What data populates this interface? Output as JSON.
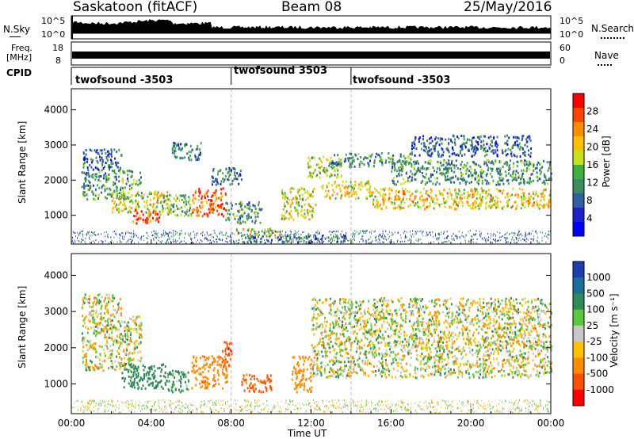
{
  "header": {
    "station": "Saskatoon (fitACF)",
    "beam": "Beam 08",
    "date": "25/May/2016"
  },
  "top_panels": {
    "nsky_label": "N.Sky",
    "nsky_scale": [
      "10^5",
      "10^0"
    ],
    "nsearch_label": "N.Search",
    "nsearch_scale": [
      "10^5",
      "10^0"
    ],
    "freq_label": "Freq.",
    "freq_unit": "[MHz]",
    "freq_scale": [
      "18",
      "8"
    ],
    "nave_label": "Nave",
    "nave_scale": [
      "60",
      "0"
    ],
    "cpid_label": "CPID",
    "cpid_segments": [
      {
        "label": "twofsound -3503",
        "start_hour": 0
      },
      {
        "label": "twofsound 3503",
        "start_hour": 8
      },
      {
        "label": "twofsound -3503",
        "start_hour": 14
      }
    ]
  },
  "power_colorbar": {
    "title": "Power [dB]",
    "ticks": [
      "28",
      "24",
      "20",
      "16",
      "12",
      "8",
      "4"
    ],
    "colors": [
      "#ff0000",
      "#ff4500",
      "#ff8c00",
      "#ffc000",
      "#c8e020",
      "#40b040",
      "#3c8c60",
      "#3060a0",
      "#2020c8",
      "#0000ff"
    ]
  },
  "velocity_colorbar": {
    "title": "Velocity [m s⁻¹]",
    "ticks": [
      "1000",
      "500",
      "100",
      "25",
      "-25",
      "-100",
      "-500",
      "-1000"
    ],
    "colors": [
      "#1e3cb4",
      "#1a6e9a",
      "#2e8b57",
      "#5ec840",
      "#c8c8c8",
      "#ffc000",
      "#ff8c00",
      "#ff5000",
      "#ff0000"
    ]
  },
  "chart_data": [
    {
      "type": "heatmap",
      "name": "power",
      "xlabel": "Time UT",
      "ylabel": "Slant Range [km]",
      "x_ticks": [
        "00:00",
        "04:00",
        "08:00",
        "12:00",
        "16:00",
        "20:00",
        "00:00"
      ],
      "y_ticks": [
        "1000",
        "2000",
        "3000",
        "4000"
      ],
      "xlim_hours": [
        0,
        24
      ],
      "ylim_km": [
        180,
        4600
      ],
      "colorbar_title": "Power [dB]",
      "colorbar_ticks": [
        4,
        8,
        12,
        16,
        20,
        24,
        28
      ],
      "bands": [
        {
          "t0": 0.5,
          "t1": 3.0,
          "r0": 1450,
          "r1": 1900,
          "level": 12
        },
        {
          "t0": 0.5,
          "t1": 3.5,
          "r0": 1900,
          "r1": 2300,
          "level": 12
        },
        {
          "t0": 0.5,
          "t1": 2.5,
          "r0": 2300,
          "r1": 2900,
          "level": 8
        },
        {
          "t0": 2.0,
          "t1": 5.0,
          "r0": 1100,
          "r1": 1700,
          "level": 18
        },
        {
          "t0": 3.0,
          "t1": 4.5,
          "r0": 800,
          "r1": 1200,
          "level": 26
        },
        {
          "t0": 4.5,
          "t1": 6.0,
          "r0": 1000,
          "r1": 1600,
          "level": 14
        },
        {
          "t0": 5.0,
          "t1": 6.5,
          "r0": 2600,
          "r1": 3100,
          "level": 10
        },
        {
          "t0": 6.0,
          "t1": 7.7,
          "r0": 1000,
          "r1": 1800,
          "level": 26
        },
        {
          "t0": 7.7,
          "t1": 9.5,
          "r0": 800,
          "r1": 1400,
          "level": 12
        },
        {
          "t0": 7.0,
          "t1": 8.5,
          "r0": 1900,
          "r1": 2400,
          "level": 10
        },
        {
          "t0": 8.2,
          "t1": 10.5,
          "r0": 450,
          "r1": 650,
          "level": 18
        },
        {
          "t0": 10.5,
          "t1": 12.2,
          "r0": 900,
          "r1": 1800,
          "level": 18
        },
        {
          "t0": 11.8,
          "t1": 13.5,
          "r0": 2100,
          "r1": 2700,
          "level": 16
        },
        {
          "t0": 12.5,
          "t1": 15.0,
          "r0": 1500,
          "r1": 2000,
          "level": 20
        },
        {
          "t0": 13.0,
          "t1": 17.0,
          "r0": 2400,
          "r1": 2800,
          "level": 12
        },
        {
          "t0": 15.0,
          "t1": 24.0,
          "r0": 1200,
          "r1": 1800,
          "level": 20
        },
        {
          "t0": 16.0,
          "t1": 24.0,
          "r0": 1900,
          "r1": 2600,
          "level": 12
        },
        {
          "t0": 17.0,
          "t1": 23.0,
          "r0": 2700,
          "r1": 3300,
          "level": 8
        },
        {
          "t0": 8.5,
          "t1": 14.0,
          "r0": 250,
          "r1": 450,
          "level": 10
        }
      ]
    },
    {
      "type": "heatmap",
      "name": "velocity",
      "xlabel": "Time UT",
      "ylabel": "Slant Range [km]",
      "x_ticks": [
        "00:00",
        "04:00",
        "08:00",
        "12:00",
        "16:00",
        "20:00",
        "00:00"
      ],
      "y_ticks": [
        "1000",
        "2000",
        "3000",
        "4000"
      ],
      "xlim_hours": [
        0,
        24
      ],
      "ylim_km": [
        180,
        4600
      ],
      "colorbar_title": "Velocity [m s⁻¹]",
      "colorbar_ticks": [
        1000,
        500,
        100,
        25,
        -25,
        -100,
        -500,
        -1000
      ],
      "bands": [
        {
          "t0": 0.5,
          "t1": 3.5,
          "r0": 1400,
          "r1": 2900,
          "vel": 0
        },
        {
          "t0": 2.5,
          "t1": 4.8,
          "r0": 900,
          "r1": 1600,
          "vel": 300
        },
        {
          "t0": 4.8,
          "t1": 6.0,
          "r0": 800,
          "r1": 1400,
          "vel": 150
        },
        {
          "t0": 6.0,
          "t1": 7.8,
          "r0": 900,
          "r1": 1800,
          "vel": -400
        },
        {
          "t0": 7.5,
          "t1": 8.0,
          "r0": 1500,
          "r1": 2200,
          "vel": -900
        },
        {
          "t0": 8.5,
          "t1": 10.0,
          "r0": 800,
          "r1": 1300,
          "vel": -600
        },
        {
          "t0": 11.0,
          "t1": 12.0,
          "r0": 800,
          "r1": 1800,
          "vel": -300
        },
        {
          "t0": 12.0,
          "t1": 24.0,
          "r0": 1200,
          "r1": 3400,
          "vel": 0
        },
        {
          "t0": 0.5,
          "t1": 2.5,
          "r0": 2900,
          "r1": 3500,
          "vel": 0
        }
      ]
    }
  ]
}
